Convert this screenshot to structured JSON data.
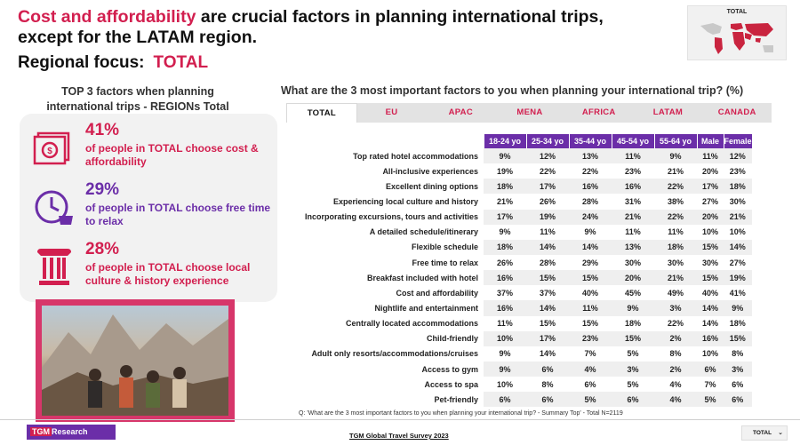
{
  "headline": {
    "highlight": "Cost and affordability",
    "rest": " are crucial factors in planning international trips, except for the LATAM region."
  },
  "focus": {
    "label": "Regional focus:",
    "value": "TOTAL"
  },
  "map": {
    "title": "TOTAL"
  },
  "left": {
    "title": "TOP 3 factors when planning international trips - REGIONs Total",
    "factors": [
      {
        "pct": "41%",
        "text": "of people in TOTAL choose cost & affordability",
        "icon": "money-icon",
        "color": "#d21f4f"
      },
      {
        "pct": "29%",
        "text": "of people in TOTAL choose free time to relax",
        "icon": "clock-coffee-icon",
        "color": "#6b2ea8"
      },
      {
        "pct": "28%",
        "text": "of people in TOTAL choose local culture & history experience",
        "icon": "column-icon",
        "color": "#d21f4f"
      }
    ]
  },
  "question": "What are the 3 most important factors to you when planning your international trip? (%)",
  "tabs": [
    "TOTAL",
    "EU",
    "APAC",
    "MENA",
    "AFRICA",
    "LATAM",
    "CANADA"
  ],
  "active_tab": "TOTAL",
  "table": {
    "age_headers": [
      "18-24 yo",
      "25-34 yo",
      "35-44 yo",
      "45-54 yo",
      "55-64 yo"
    ],
    "gender_headers": [
      "Male",
      "Female"
    ],
    "rows": [
      {
        "label": "Top rated hotel accommodations",
        "v": [
          "9%",
          "12%",
          "13%",
          "11%",
          "9%",
          "11%",
          "12%"
        ]
      },
      {
        "label": "All-inclusive experiences",
        "v": [
          "19%",
          "22%",
          "22%",
          "23%",
          "21%",
          "20%",
          "23%"
        ]
      },
      {
        "label": "Excellent dining options",
        "v": [
          "18%",
          "17%",
          "16%",
          "16%",
          "22%",
          "17%",
          "18%"
        ]
      },
      {
        "label": "Experiencing local culture and history",
        "v": [
          "21%",
          "26%",
          "28%",
          "31%",
          "38%",
          "27%",
          "30%"
        ]
      },
      {
        "label": "Incorporating excursions, tours and activities",
        "v": [
          "17%",
          "19%",
          "24%",
          "21%",
          "22%",
          "20%",
          "21%"
        ]
      },
      {
        "label": "A detailed schedule/itinerary",
        "v": [
          "9%",
          "11%",
          "9%",
          "11%",
          "11%",
          "10%",
          "10%"
        ]
      },
      {
        "label": "Flexible schedule",
        "v": [
          "18%",
          "14%",
          "14%",
          "13%",
          "18%",
          "15%",
          "14%"
        ]
      },
      {
        "label": "Free time to relax",
        "v": [
          "26%",
          "28%",
          "29%",
          "30%",
          "30%",
          "30%",
          "27%"
        ]
      },
      {
        "label": "Breakfast included with hotel",
        "v": [
          "16%",
          "15%",
          "15%",
          "20%",
          "21%",
          "15%",
          "19%"
        ]
      },
      {
        "label": "Cost and affordability",
        "v": [
          "37%",
          "37%",
          "40%",
          "45%",
          "49%",
          "40%",
          "41%"
        ]
      },
      {
        "label": "Nightlife and entertainment",
        "v": [
          "16%",
          "14%",
          "11%",
          "9%",
          "3%",
          "14%",
          "9%"
        ]
      },
      {
        "label": "Centrally located accommodations",
        "v": [
          "11%",
          "15%",
          "15%",
          "18%",
          "22%",
          "14%",
          "18%"
        ]
      },
      {
        "label": "Child-friendly",
        "v": [
          "10%",
          "17%",
          "23%",
          "15%",
          "2%",
          "16%",
          "15%"
        ]
      },
      {
        "label": "Adult only resorts/accommodations/cruises",
        "v": [
          "9%",
          "14%",
          "7%",
          "5%",
          "8%",
          "10%",
          "8%"
        ]
      },
      {
        "label": "Access to gym",
        "v": [
          "9%",
          "6%",
          "4%",
          "3%",
          "2%",
          "6%",
          "3%"
        ]
      },
      {
        "label": "Access to spa",
        "v": [
          "10%",
          "8%",
          "6%",
          "5%",
          "4%",
          "7%",
          "6%"
        ]
      },
      {
        "label": "Pet-friendly",
        "v": [
          "6%",
          "6%",
          "5%",
          "6%",
          "4%",
          "5%",
          "6%"
        ]
      }
    ]
  },
  "footnote": "Q: 'What are the 3 most important factors to you when planning your international trip? - Summary Top' - Total N=2119",
  "footer": {
    "logo_a": "TGM",
    "logo_b": "Research",
    "survey": "TGM Global Travel Survey 2023",
    "select_value": "TOTAL"
  },
  "colors": {
    "accent": "#d21f4f",
    "purple": "#6b2ea8"
  }
}
